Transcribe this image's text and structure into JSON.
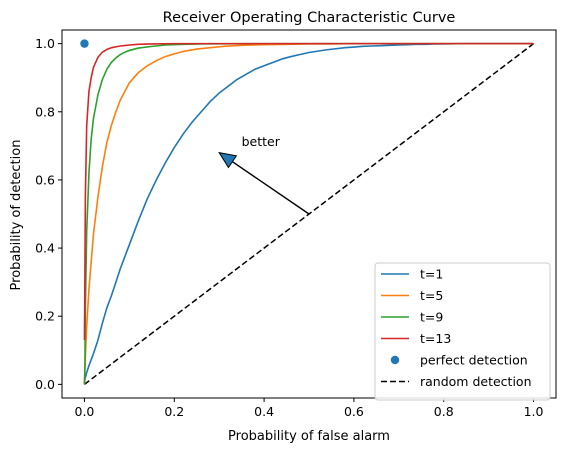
{
  "chart_data": {
    "type": "line",
    "title": "Receiver Operating Characteristic Curve",
    "xlabel": "Probability of false alarm",
    "ylabel": "Probability of detection",
    "xlim": [
      -0.05,
      1.05
    ],
    "ylim": [
      -0.04,
      1.04
    ],
    "xticks": [
      0.0,
      0.2,
      0.4,
      0.6,
      0.8,
      1.0
    ],
    "yticks": [
      0.0,
      0.2,
      0.4,
      0.6,
      0.8,
      1.0
    ],
    "xtick_labels": [
      "0.0",
      "0.2",
      "0.4",
      "0.6",
      "0.8",
      "1.0"
    ],
    "ytick_labels": [
      "0.0",
      "0.2",
      "0.4",
      "0.6",
      "0.8",
      "1.0"
    ],
    "grid": false,
    "legend_position": "lower-right",
    "series": [
      {
        "name": "t=1",
        "color": "#1f77b4",
        "x": [
          0.0,
          0.001,
          0.005,
          0.01,
          0.02,
          0.03,
          0.04,
          0.05,
          0.06,
          0.07,
          0.08,
          0.09,
          0.1,
          0.12,
          0.14,
          0.16,
          0.18,
          0.2,
          0.22,
          0.24,
          0.26,
          0.28,
          0.3,
          0.32,
          0.34,
          0.36,
          0.38,
          0.4,
          0.42,
          0.44,
          0.46,
          0.48,
          0.5,
          0.52,
          0.54,
          0.56,
          0.58,
          0.6,
          0.62,
          0.64,
          0.66,
          0.68,
          0.7,
          0.72,
          0.74,
          0.76,
          0.78,
          0.8,
          0.85,
          0.9,
          0.95,
          1.0
        ],
        "y": [
          0.0,
          0.015,
          0.035,
          0.055,
          0.09,
          0.13,
          0.18,
          0.225,
          0.26,
          0.3,
          0.34,
          0.375,
          0.41,
          0.48,
          0.545,
          0.6,
          0.65,
          0.695,
          0.735,
          0.77,
          0.8,
          0.83,
          0.855,
          0.875,
          0.895,
          0.91,
          0.925,
          0.935,
          0.945,
          0.955,
          0.962,
          0.968,
          0.974,
          0.978,
          0.982,
          0.985,
          0.988,
          0.99,
          0.992,
          0.993,
          0.994,
          0.995,
          0.996,
          0.997,
          0.998,
          0.998,
          0.999,
          0.999,
          1.0,
          1.0,
          1.0,
          1.0
        ]
      },
      {
        "name": "t=5",
        "color": "#ff7f0e",
        "x": [
          0.0,
          0.002,
          0.005,
          0.01,
          0.015,
          0.02,
          0.03,
          0.04,
          0.05,
          0.06,
          0.07,
          0.08,
          0.09,
          0.1,
          0.12,
          0.14,
          0.16,
          0.18,
          0.2,
          0.22,
          0.25,
          0.28,
          0.31,
          0.35,
          0.4,
          0.45,
          0.5,
          0.55,
          0.6,
          0.7,
          0.8,
          0.9,
          1.0
        ],
        "y": [
          0.0,
          0.08,
          0.17,
          0.28,
          0.36,
          0.44,
          0.55,
          0.64,
          0.71,
          0.76,
          0.8,
          0.835,
          0.86,
          0.885,
          0.915,
          0.935,
          0.95,
          0.962,
          0.97,
          0.977,
          0.984,
          0.988,
          0.992,
          0.995,
          0.997,
          0.998,
          0.999,
          0.999,
          1.0,
          1.0,
          1.0,
          1.0,
          1.0
        ]
      },
      {
        "name": "t=9",
        "color": "#2ca02c",
        "x": [
          0.0,
          0.001,
          0.002,
          0.005,
          0.01,
          0.015,
          0.02,
          0.03,
          0.04,
          0.05,
          0.06,
          0.07,
          0.08,
          0.09,
          0.1,
          0.12,
          0.15,
          0.18,
          0.22,
          0.26,
          0.3,
          0.4,
          0.5,
          0.7,
          1.0
        ],
        "y": [
          0.0,
          0.05,
          0.22,
          0.45,
          0.62,
          0.72,
          0.78,
          0.85,
          0.895,
          0.925,
          0.945,
          0.958,
          0.968,
          0.975,
          0.98,
          0.987,
          0.992,
          0.996,
          0.998,
          0.999,
          0.9995,
          1.0,
          1.0,
          1.0,
          1.0
        ]
      },
      {
        "name": "t=13",
        "color": "#d62728",
        "x": [
          0.0,
          0.001,
          0.002,
          0.005,
          0.01,
          0.015,
          0.02,
          0.03,
          0.04,
          0.05,
          0.06,
          0.08,
          0.1,
          0.12,
          0.15,
          0.2,
          0.3,
          0.4,
          0.6,
          1.0
        ],
        "y": [
          0.13,
          0.32,
          0.55,
          0.76,
          0.86,
          0.9,
          0.93,
          0.96,
          0.975,
          0.983,
          0.988,
          0.993,
          0.996,
          0.998,
          0.999,
          1.0,
          1.0,
          1.0,
          1.0,
          1.0
        ]
      }
    ],
    "points": [
      {
        "name": "perfect detection",
        "color": "#1f77b4",
        "x": 0.0,
        "y": 1.0
      }
    ],
    "reference_line": {
      "name": "random detection",
      "color": "#000000",
      "style": "dashed",
      "x": [
        0.0,
        1.0
      ],
      "y": [
        0.0,
        1.0
      ]
    },
    "annotation": {
      "text": "better",
      "arrow_from": [
        0.5,
        0.5
      ],
      "arrow_to": [
        0.3,
        0.68
      ],
      "text_at": [
        0.35,
        0.7
      ]
    }
  }
}
